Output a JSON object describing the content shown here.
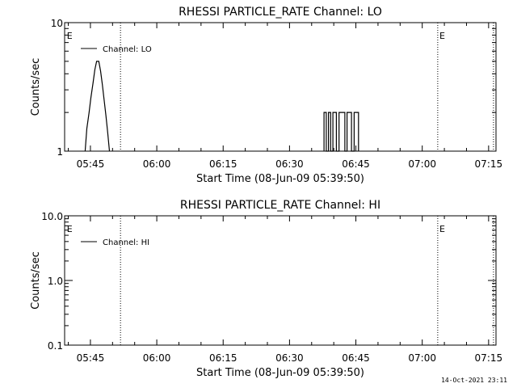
{
  "chart_data": [
    {
      "type": "line",
      "title": "RHESSI PARTICLE_RATE Channel: LO",
      "ylabel": "Counts/sec",
      "xlabel": "Start Time (08-Jun-09 05:39:50)",
      "yscale": "log",
      "ylim": [
        1,
        10
      ],
      "xlim_minutes": [
        -0.83,
        96.67
      ],
      "ytick_values": [
        1,
        10
      ],
      "ytick_labels": [
        "1",
        "10"
      ],
      "xtick_minutes": [
        5,
        20,
        35,
        50,
        65,
        80,
        95
      ],
      "xtick_labels": [
        "05:45",
        "06:00",
        "06:15",
        "06:30",
        "06:45",
        "07:00",
        "07:15"
      ],
      "vlines_minutes": [
        11.8,
        83.5,
        96.1
      ],
      "event_markers": [
        {
          "label": "E",
          "minute": -0.5
        },
        {
          "label": "E",
          "minute": 83.7
        }
      ],
      "legend": {
        "label": "Channel: LO",
        "position": "top-left"
      },
      "series": [
        {
          "name": "Channel: LO",
          "segments": [
            [
              [
                3.8,
                1
              ],
              [
                4.2,
                1.5
              ],
              [
                4.7,
                2
              ],
              [
                5.1,
                2.6
              ],
              [
                5.6,
                3.4
              ],
              [
                6.0,
                4.3
              ],
              [
                6.4,
                5.0
              ],
              [
                6.9,
                5.0
              ],
              [
                7.3,
                4.2
              ],
              [
                7.7,
                3.3
              ],
              [
                8.1,
                2.5
              ],
              [
                8.5,
                1.9
              ],
              [
                8.9,
                1.4
              ],
              [
                9.3,
                1
              ]
            ],
            [
              [
                57.8,
                1
              ],
              [
                57.8,
                2
              ],
              [
                58.3,
                2
              ],
              [
                58.3,
                1
              ],
              [
                58.8,
                1
              ],
              [
                58.8,
                2
              ],
              [
                59.3,
                2
              ],
              [
                59.3,
                1
              ],
              [
                59.8,
                1
              ],
              [
                59.8,
                2
              ],
              [
                60.6,
                2
              ],
              [
                60.6,
                1
              ],
              [
                61.2,
                1
              ],
              [
                61.2,
                2
              ],
              [
                62.5,
                2
              ],
              [
                62.5,
                1
              ],
              [
                63.0,
                1
              ],
              [
                63.0,
                2
              ],
              [
                64.0,
                2
              ],
              [
                64.0,
                1
              ],
              [
                64.6,
                1
              ],
              [
                64.6,
                2
              ],
              [
                65.6,
                2
              ],
              [
                65.6,
                1
              ]
            ]
          ]
        }
      ]
    },
    {
      "type": "line",
      "title": "RHESSI PARTICLE_RATE Channel: HI",
      "ylabel": "Counts/sec",
      "xlabel": "Start Time (08-Jun-09 05:39:50)",
      "yscale": "log",
      "ylim": [
        0.1,
        10
      ],
      "xlim_minutes": [
        -0.83,
        96.67
      ],
      "ytick_values": [
        0.1,
        1,
        10
      ],
      "ytick_labels": [
        "0.1",
        "1.0",
        "10.0"
      ],
      "xtick_minutes": [
        5,
        20,
        35,
        50,
        65,
        80,
        95
      ],
      "xtick_labels": [
        "05:45",
        "06:00",
        "06:15",
        "06:30",
        "06:45",
        "07:00",
        "07:15"
      ],
      "vlines_minutes": [
        11.8,
        83.5,
        96.1
      ],
      "event_markers": [
        {
          "label": "E",
          "minute": -0.5
        },
        {
          "label": "E",
          "minute": 83.7
        }
      ],
      "legend": {
        "label": "Channel: HI",
        "position": "top-left"
      },
      "series": [
        {
          "name": "Channel: HI",
          "segments": []
        }
      ]
    }
  ],
  "footer": {
    "timestamp": "14-Oct-2021 23:11"
  }
}
